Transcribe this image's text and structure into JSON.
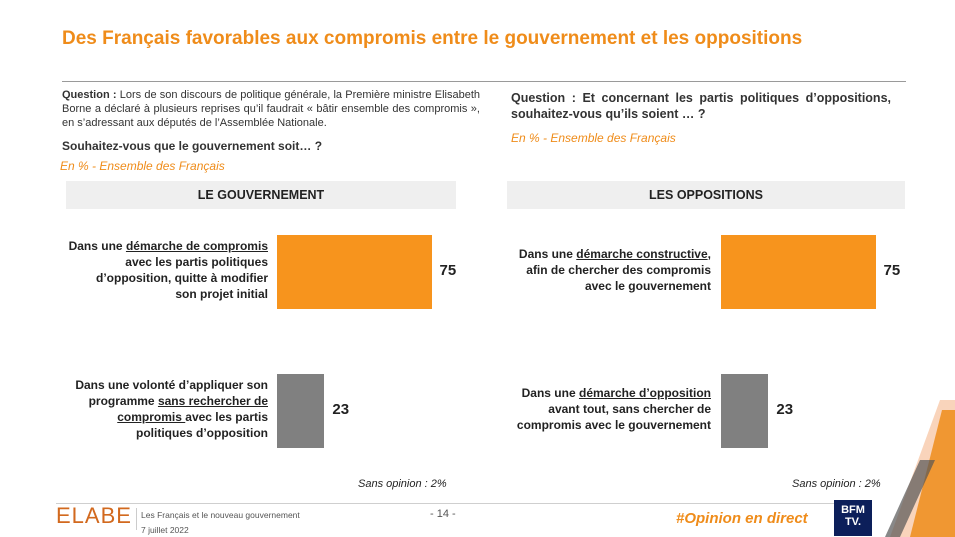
{
  "title": "Des Français favorables aux compromis entre le gouvernement et les oppositions",
  "question_left": {
    "label": "Question :",
    "text": "Lors de son discours de politique générale, la Première ministre Elisabeth Borne a déclaré à plusieurs reprises qu’il faudrait « bâtir ensemble des compromis », en s’adressant aux députés de l’Assemblée Nationale.",
    "sub": "Souhaitez-vous que le gouvernement soit… ?",
    "note": "En % - Ensemble des Français"
  },
  "question_right": {
    "label": "Question :",
    "text": "Et concernant les partis politiques d’oppositions, souhaitez-vous qu’ils soient … ?",
    "note": "En % - Ensemble des Français"
  },
  "chart_data": [
    {
      "type": "bar",
      "title": "LE GOUVERNEMENT",
      "categories": [
        "Dans une démarche de compromis avec les partis politiques d’opposition, quitte à modifier son projet initial",
        "Dans une volonté d’appliquer son programme sans rechercher de compromis avec les partis politiques d’opposition"
      ],
      "values": [
        75,
        23
      ],
      "value_labels": [
        "75",
        "23"
      ],
      "colors": [
        "#f7941d",
        "#808080"
      ],
      "footnote": "Sans opinion : 2%"
    },
    {
      "type": "bar",
      "title": "LES OPPOSITIONS",
      "categories": [
        "Dans une démarche constructive, afin de chercher des compromis avec le gouvernement",
        "Dans une démarche d’opposition avant tout, sans chercher de compromis avec le gouvernement"
      ],
      "values": [
        75,
        23
      ],
      "value_labels": [
        "75",
        "23"
      ],
      "colors": [
        "#f7941d",
        "#808080"
      ],
      "footnote": "Sans opinion : 2%"
    }
  ],
  "labels_rich": {
    "l1a": "Dans une ",
    "l1u": "démarche de compromis",
    "l1b": "avec les partis politiques",
    "l1c": "d’opposition, quitte à modifier",
    "l1d": "son projet initial",
    "l2a": "Dans une volonté d’appliquer son",
    "l2b": "programme ",
    "l2u": "sans rechercher de",
    "l2u2": "compromis ",
    "l2c": "avec les partis",
    "l2d": "politiques d’opposition",
    "r1a": "Dans une ",
    "r1u": "démarche constructive",
    "r1b": ",",
    "r1c": "afin de chercher des compromis",
    "r1d": "avec le gouvernement",
    "r2a": "Dans une ",
    "r2u": "démarche d’opposition",
    "r2c": "avant tout, sans chercher de",
    "r2d": "compromis avec le gouvernement"
  },
  "footer": {
    "logo": "ELABE",
    "study": "Les Français et le nouveau gouvernement",
    "date": "7 juillet 2022",
    "page": "- 14 -",
    "hashtag": "#Opinion en direct",
    "partner_line1": "BFM",
    "partner_line2": "TV."
  },
  "colors": {
    "accent": "#ef8c1a",
    "bar_main": "#f7941d",
    "bar_secondary": "#808080",
    "partner_bg": "#0c1f5a"
  }
}
